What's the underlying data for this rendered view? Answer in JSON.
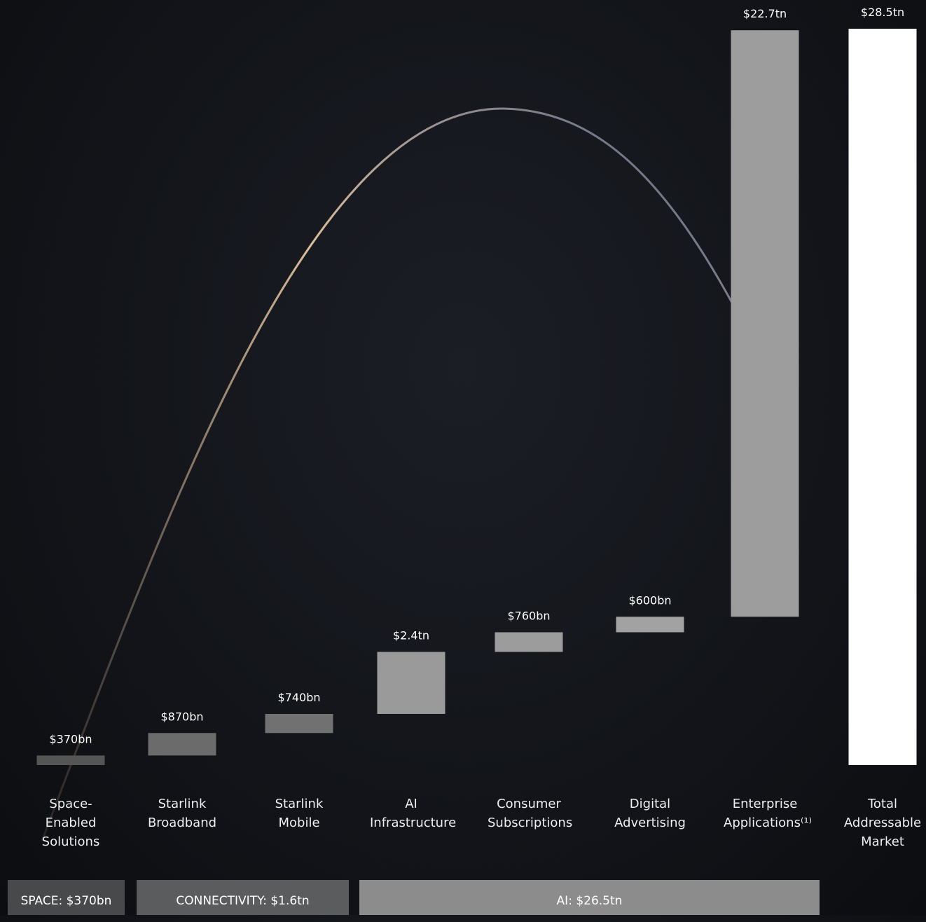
{
  "chart_data": {
    "type": "waterfall",
    "categories": [
      "Space-Enabled Solutions",
      "Starlink Broadband",
      "Starlink Mobile",
      "AI Infrastructure",
      "Consumer Subscriptions",
      "Digital Advertising",
      "Enterprise Applications⁽¹⁾",
      "Total Addressable Market"
    ],
    "values": [
      370,
      870,
      740,
      2400,
      760,
      600,
      22700,
      28500
    ],
    "value_labels": [
      "$370bn",
      "$870bn",
      "$740bn",
      "$2.4tn",
      "$760bn",
      "$600bn",
      "$22.7tn",
      "$28.5tn"
    ],
    "colors": [
      "#555555",
      "#6b6b6c",
      "#717172",
      "#9a9a9b",
      "#9c9c9d",
      "#a2a2a3",
      "#9d9d9e",
      "#ffffff"
    ],
    "groups": [
      "SPACE: $370bn",
      "CONNECTIVITY: $1.6tn",
      "AI: $26.5tn"
    ],
    "group_colors": [
      "#48494b",
      "#5b5c5e",
      "#8c8c8d"
    ]
  }
}
